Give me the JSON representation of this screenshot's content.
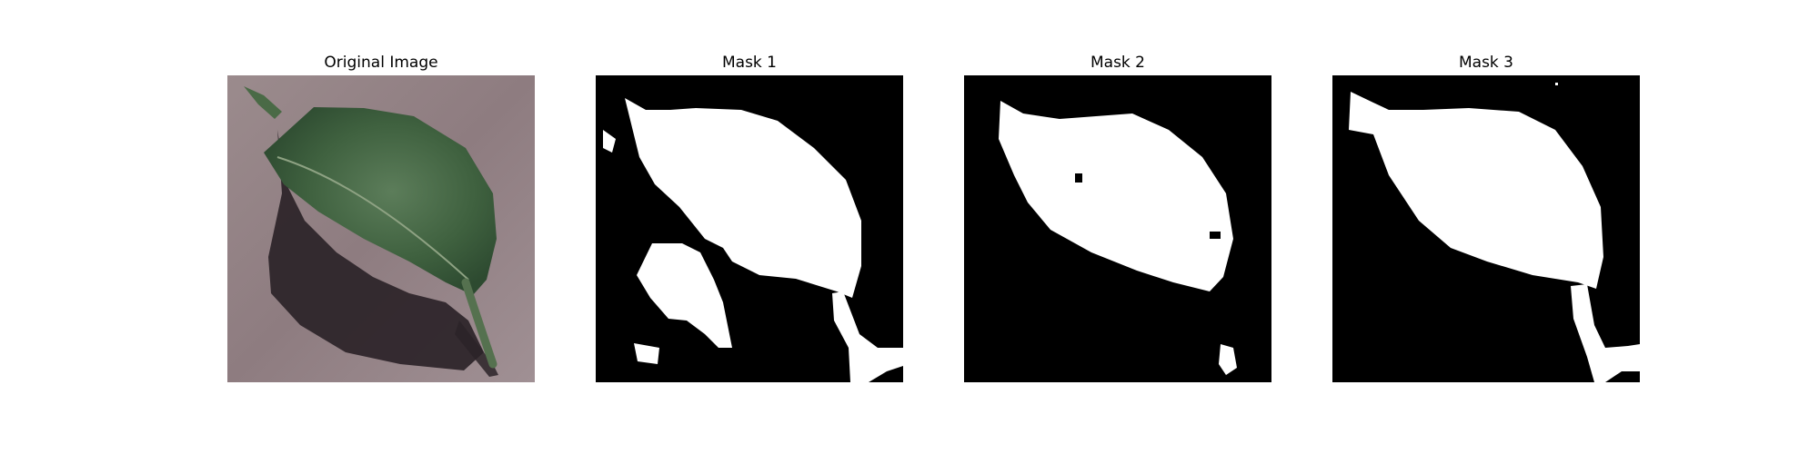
{
  "panels": [
    {
      "title": "Original Image"
    },
    {
      "title": "Mask 1"
    },
    {
      "title": "Mask 2"
    },
    {
      "title": "Mask 3"
    }
  ],
  "colors": {
    "background": "#ffffff",
    "mask_background": "#000000",
    "mask_foreground": "#ffffff",
    "surface": "#8f7d80",
    "leaf": "#3d5e3d",
    "shadow": "#2b2328"
  }
}
